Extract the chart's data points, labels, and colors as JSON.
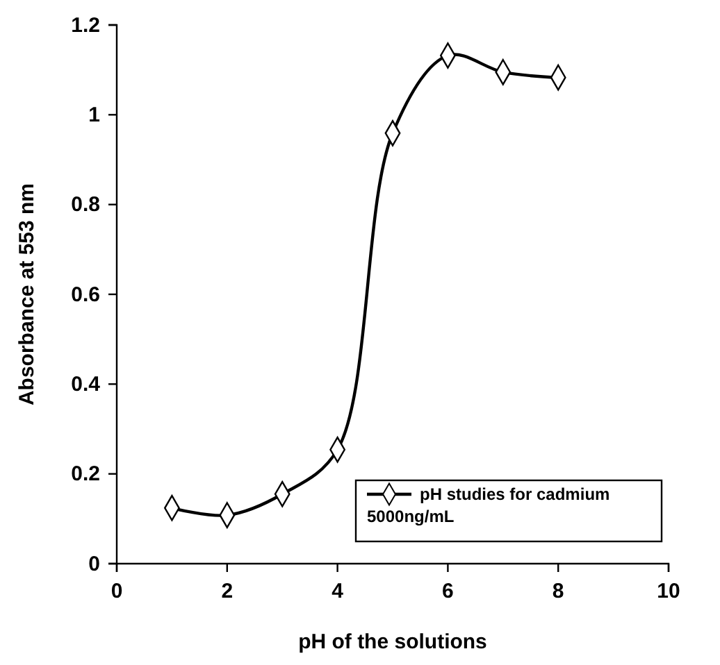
{
  "chart_data": {
    "type": "line",
    "xlabel": "pH of the solutions",
    "ylabel": "Absorbance at 553 nm",
    "x": [
      1,
      2,
      3,
      4,
      5,
      6,
      7,
      8
    ],
    "series": [
      {
        "name": "pH studies for cadmium 5000ng/mL",
        "color": "#000000",
        "values": [
          0.124,
          0.108,
          0.155,
          0.254,
          0.959,
          1.132,
          1.095,
          1.083
        ]
      }
    ],
    "xlim": [
      0,
      10
    ],
    "xticks": [
      0,
      2,
      4,
      6,
      8,
      10
    ],
    "ylim": [
      0,
      1.2
    ],
    "yticks": [
      0,
      0.2,
      0.4,
      0.6,
      0.8,
      1,
      1.2
    ],
    "grid": false,
    "legend": "bottom right",
    "marker": "diamond",
    "line_style": "solid"
  }
}
